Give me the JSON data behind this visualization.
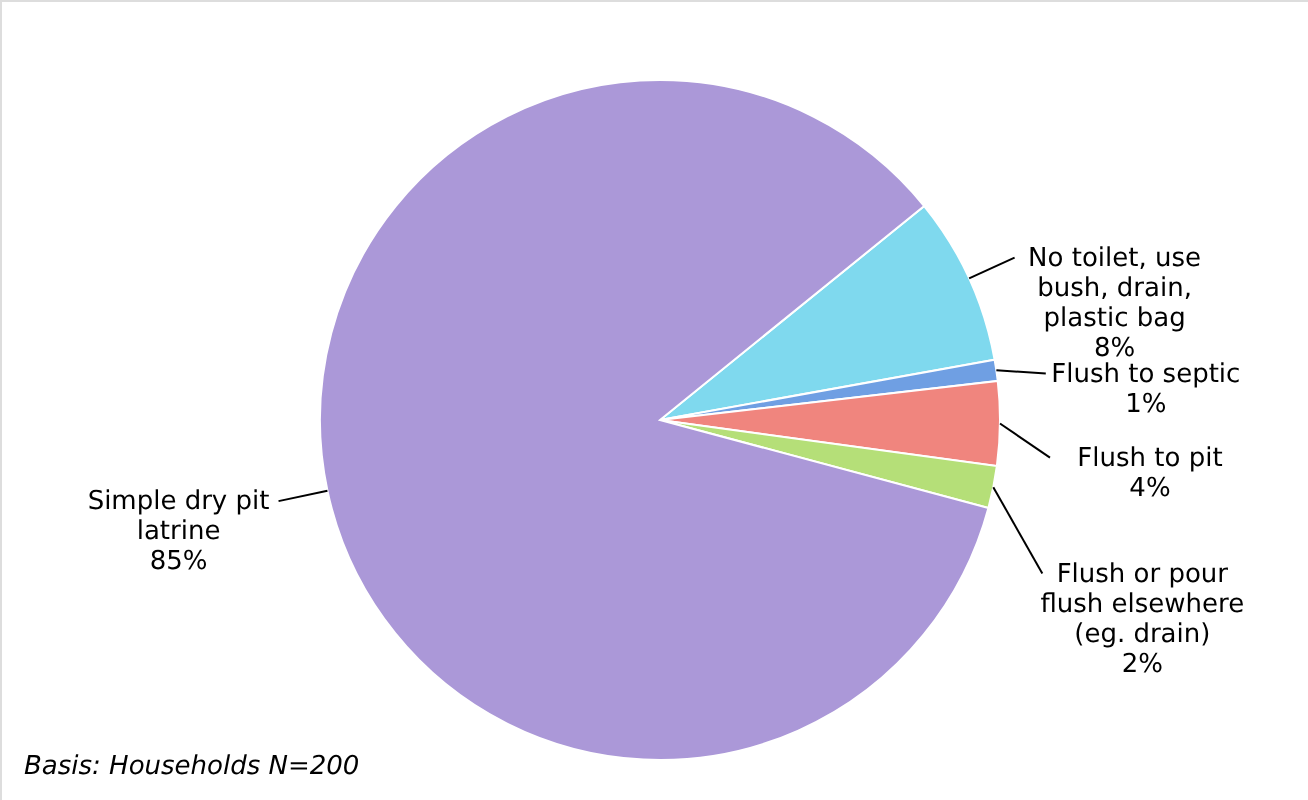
{
  "chart_data": {
    "type": "pie",
    "categories": [
      "No toilet, use bush, drain, plastic bag",
      "Flush to septic",
      "Flush to pit",
      "Flush or pour flush elsewhere (eg. drain)",
      "Simple dry pit latrine"
    ],
    "values": [
      8,
      1,
      4,
      2,
      85
    ],
    "value_labels": [
      "8%",
      "1%",
      "4%",
      "2%",
      "85%"
    ],
    "colors": [
      "#7fd9ee",
      "#6f9fe3",
      "#f0857e",
      "#b5df78",
      "#ab98d8"
    ],
    "annotations": [
      "Basis: Households N=200"
    ],
    "legend": false
  }
}
